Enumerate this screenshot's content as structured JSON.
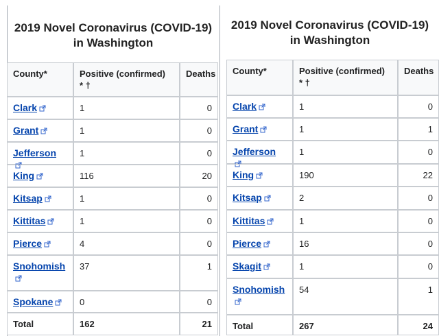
{
  "tables": [
    {
      "title": "2019 Novel Coronavirus (COVID-19)\nin Washington",
      "headers": [
        "County*",
        "Positive (confirmed)\n* †",
        "Deaths"
      ],
      "rows": [
        [
          "Clark",
          "1",
          "0"
        ],
        [
          "Grant",
          "1",
          "0"
        ],
        [
          "Jefferson",
          "1",
          "0"
        ],
        [
          "King",
          "116",
          "20"
        ],
        [
          "Kitsap",
          "1",
          "0"
        ],
        [
          "Kittitas",
          "1",
          "0"
        ],
        [
          "Pierce",
          "4",
          "0"
        ],
        [
          "Snohomish",
          "37",
          "1"
        ],
        [
          "Spokane",
          "0",
          "0"
        ]
      ],
      "total": [
        "Total",
        "162",
        "21"
      ]
    },
    {
      "title": "2019 Novel Coronavirus (COVID-19)\nin Washington",
      "headers": [
        "County*",
        "Positive (confirmed)\n* †",
        "Deaths"
      ],
      "rows": [
        [
          "Clark",
          "1",
          "0"
        ],
        [
          "Grant",
          "1",
          "1"
        ],
        [
          "Jefferson",
          "1",
          "0"
        ],
        [
          "King",
          "190",
          "22"
        ],
        [
          "Kitsap",
          "2",
          "0"
        ],
        [
          "Kittitas",
          "1",
          "0"
        ],
        [
          "Pierce",
          "16",
          "0"
        ],
        [
          "Skagit",
          "1",
          "0"
        ],
        [
          "Snohomish",
          "54",
          "1"
        ]
      ],
      "total": [
        "Total",
        "267",
        "24"
      ]
    }
  ]
}
